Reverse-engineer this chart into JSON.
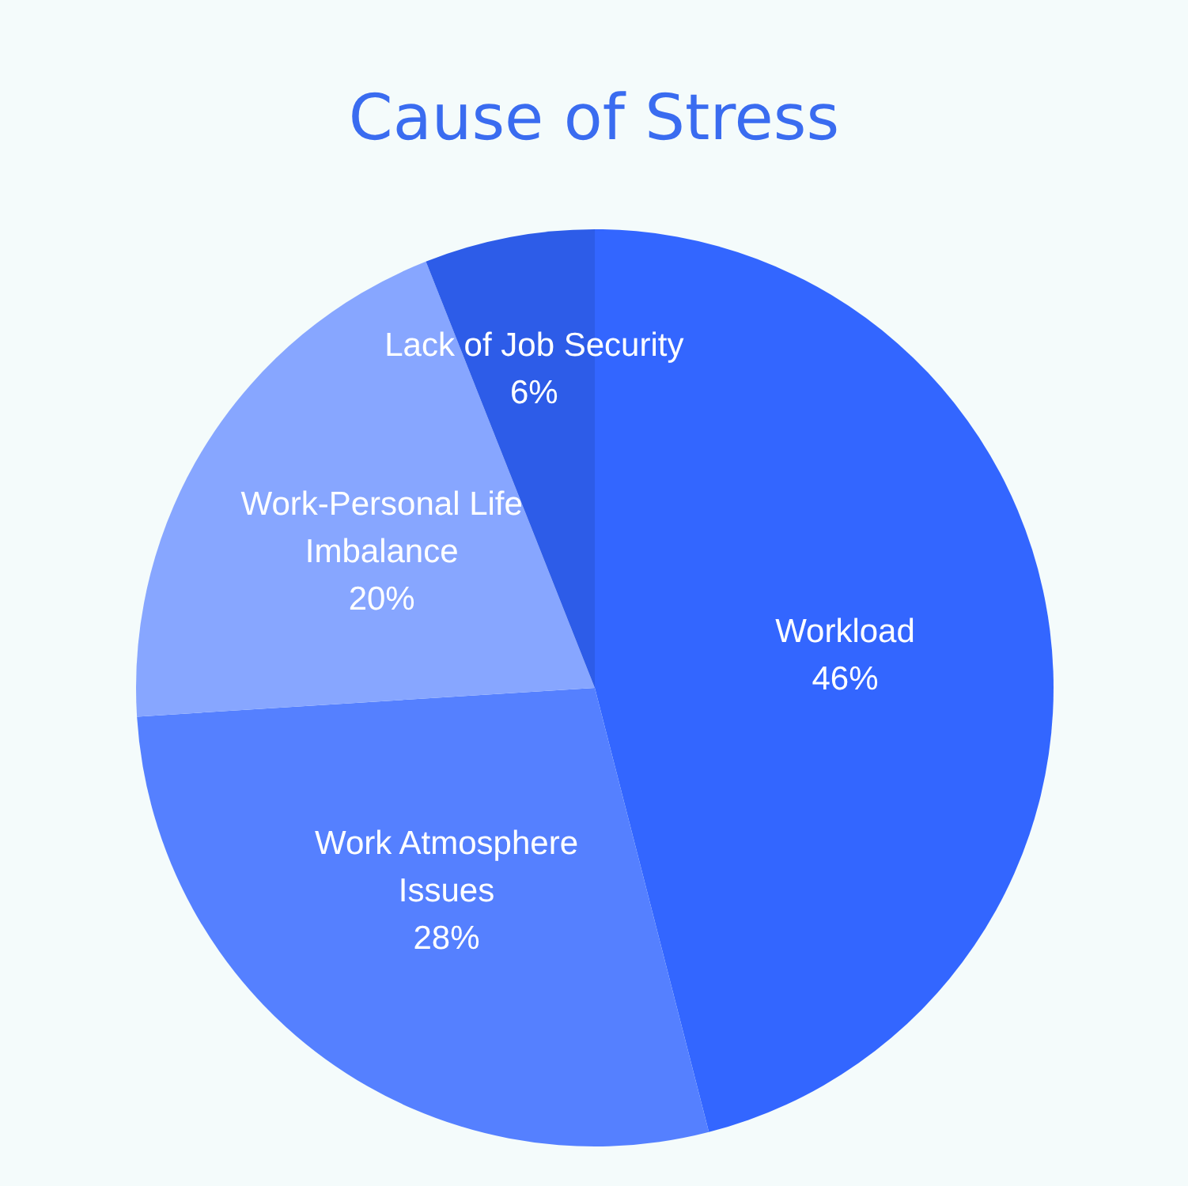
{
  "chart_data": {
    "type": "pie",
    "title": "Cause of Stress",
    "categories": [
      "Workload",
      "Work Atmosphere Issues",
      "Work-Personal Life Imbalance",
      "Lack of Job Security"
    ],
    "values": [
      46,
      28,
      20,
      6
    ],
    "value_labels": [
      "46%",
      "28%",
      "20%",
      "6%"
    ],
    "colors": [
      "#3366ff",
      "#5580ff",
      "#87a6ff",
      "#2d5ce8"
    ]
  }
}
